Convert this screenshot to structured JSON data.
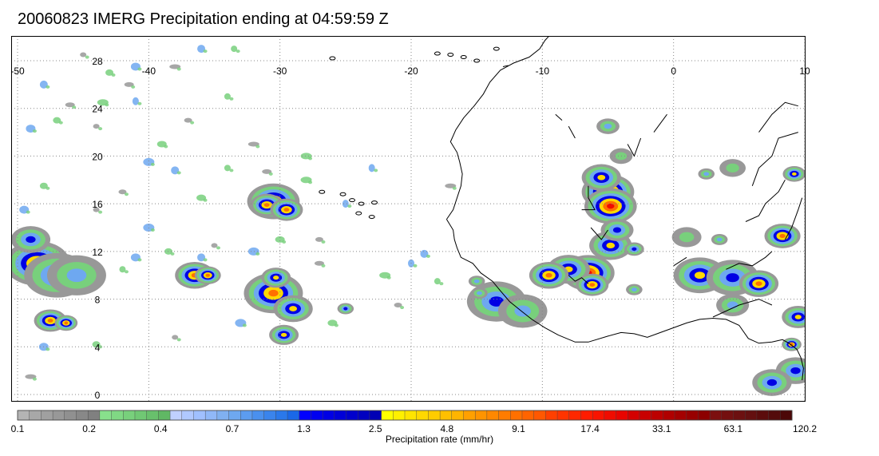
{
  "title": "20060823 IMERG Precipitation ending at 04:59:59 Z",
  "map": {
    "lon_range": [
      -50,
      10
    ],
    "lat_range": [
      -1,
      30
    ],
    "lon_labels": [
      "-50",
      "-40",
      "-30",
      "-20",
      "-10",
      "0",
      "10"
    ],
    "lat_labels": [
      "0",
      "4",
      "8",
      "12",
      "16",
      "20",
      "24",
      "28"
    ],
    "gridline_style": "dotted",
    "coast_color": "#000000"
  },
  "colorbar": {
    "colors": [
      "#b4b4b4",
      "#a8a8a8",
      "#a0a0a0",
      "#989898",
      "#909090",
      "#888888",
      "#808080",
      "#88e08c",
      "#80d884",
      "#78d07c",
      "#70c874",
      "#68c06c",
      "#60b864",
      "#c0d0ff",
      "#b0c8ff",
      "#a0c0ff",
      "#90b8f8",
      "#80b0f0",
      "#6ea8f0",
      "#5c9cf0",
      "#4a90ee",
      "#3a84ec",
      "#2a78ea",
      "#1a68e8",
      "#0000ff",
      "#0000f0",
      "#0000e4",
      "#0000d8",
      "#0000cc",
      "#0000c0",
      "#0000b4",
      "#ffff00",
      "#fff000",
      "#ffe400",
      "#ffd800",
      "#ffcc00",
      "#ffc000",
      "#ffb400",
      "#ffa000",
      "#ff9400",
      "#ff8800",
      "#ff7c00",
      "#ff7000",
      "#ff6400",
      "#ff5800",
      "#ff4000",
      "#ff3400",
      "#ff2800",
      "#ff1c00",
      "#f81400",
      "#f00c00",
      "#e80400",
      "#d40000",
      "#c80000",
      "#bc0000",
      "#b00000",
      "#a40000",
      "#980000",
      "#8c0000",
      "#7c1010",
      "#741010",
      "#6c1010",
      "#641010",
      "#5c0c0c",
      "#540c0c",
      "#4c0808"
    ],
    "tick_labels": [
      "0.1",
      "0.2",
      "0.4",
      "0.7",
      "1.3",
      "2.5",
      "4.8",
      "9.1",
      "17.4",
      "33.1",
      "63.1",
      "120.2"
    ],
    "units_label": "Precipitation rate (mm/hr)"
  },
  "rain_cells": [
    {
      "lon": -30.5,
      "lat": 16.2,
      "peak": 4,
      "size": 1.6
    },
    {
      "lon": -31.0,
      "lat": 15.9,
      "peak": 4,
      "size": 1.0
    },
    {
      "lon": -29.5,
      "lat": 15.5,
      "peak": 4,
      "size": 1.0
    },
    {
      "lon": -36.5,
      "lat": 10.0,
      "peak": 4,
      "size": 1.2
    },
    {
      "lon": -35.5,
      "lat": 10.0,
      "peak": 4,
      "size": 0.8
    },
    {
      "lon": -30.5,
      "lat": 8.5,
      "peak": 4,
      "size": 1.8
    },
    {
      "lon": -30.3,
      "lat": 9.8,
      "peak": 3,
      "size": 0.9
    },
    {
      "lon": -29.0,
      "lat": 7.2,
      "peak": 3,
      "size": 1.2
    },
    {
      "lon": -29.7,
      "lat": 5.0,
      "peak": 3,
      "size": 0.9
    },
    {
      "lon": -25.0,
      "lat": 7.2,
      "peak": 2,
      "size": 0.5
    },
    {
      "lon": -48.5,
      "lat": 11.0,
      "peak": 4,
      "size": 2.0
    },
    {
      "lon": -47.0,
      "lat": 10.0,
      "peak": 2,
      "size": 2.0
    },
    {
      "lon": -45.5,
      "lat": 10.0,
      "peak": 1,
      "size": 1.8
    },
    {
      "lon": -49.0,
      "lat": 13.0,
      "peak": 2,
      "size": 1.2
    },
    {
      "lon": -47.5,
      "lat": 6.2,
      "peak": 4,
      "size": 1.0
    },
    {
      "lon": -46.3,
      "lat": 6.0,
      "peak": 4,
      "size": 0.7
    },
    {
      "lon": -5.0,
      "lat": 17.0,
      "peak": 5,
      "size": 1.6
    },
    {
      "lon": -4.8,
      "lat": 15.8,
      "peak": 5,
      "size": 1.6
    },
    {
      "lon": -5.5,
      "lat": 18.2,
      "peak": 3,
      "size": 1.2
    },
    {
      "lon": -4.8,
      "lat": 12.5,
      "peak": 3,
      "size": 1.3
    },
    {
      "lon": -4.3,
      "lat": 13.8,
      "peak": 2,
      "size": 1.0
    },
    {
      "lon": -6.5,
      "lat": 10.2,
      "peak": 5,
      "size": 1.6
    },
    {
      "lon": -8.0,
      "lat": 10.5,
      "peak": 3,
      "size": 1.3
    },
    {
      "lon": -9.5,
      "lat": 10.0,
      "peak": 4,
      "size": 1.2
    },
    {
      "lon": -6.2,
      "lat": 9.2,
      "peak": 4,
      "size": 1.0
    },
    {
      "lon": -3.0,
      "lat": 12.2,
      "peak": 2,
      "size": 0.6
    },
    {
      "lon": 2.0,
      "lat": 10.0,
      "peak": 3,
      "size": 1.6
    },
    {
      "lon": 4.5,
      "lat": 9.8,
      "peak": 2,
      "size": 1.6
    },
    {
      "lon": 6.5,
      "lat": 9.3,
      "peak": 4,
      "size": 1.2
    },
    {
      "lon": 8.3,
      "lat": 13.3,
      "peak": 4,
      "size": 1.1
    },
    {
      "lon": 9.2,
      "lat": 18.5,
      "peak": 3,
      "size": 0.7
    },
    {
      "lon": -13.5,
      "lat": 7.8,
      "peak": 2,
      "size": 1.8
    },
    {
      "lon": -11.5,
      "lat": 7.0,
      "peak": 1,
      "size": 1.5
    },
    {
      "lon": -15.0,
      "lat": 9.5,
      "peak": 1,
      "size": 0.5
    },
    {
      "lon": -14.8,
      "lat": 8.5,
      "peak": 1,
      "size": 0.5
    },
    {
      "lon": 9.5,
      "lat": 6.5,
      "peak": 3,
      "size": 1.0
    },
    {
      "lon": 9.0,
      "lat": 4.2,
      "peak": 4,
      "size": 0.6
    },
    {
      "lon": 9.3,
      "lat": 2.0,
      "peak": 2,
      "size": 1.2
    },
    {
      "lon": 7.5,
      "lat": 1.0,
      "peak": 2,
      "size": 1.2
    },
    {
      "lon": 4.5,
      "lat": 7.5,
      "peak": 1,
      "size": 1.0
    },
    {
      "lon": -3.0,
      "lat": 8.8,
      "peak": 1,
      "size": 0.5
    },
    {
      "lon": -4.0,
      "lat": 20.0,
      "peak": 0,
      "size": 0.7
    },
    {
      "lon": -5.0,
      "lat": 22.5,
      "peak": 1,
      "size": 0.7
    },
    {
      "lon": 1.0,
      "lat": 13.2,
      "peak": 0,
      "size": 0.9
    },
    {
      "lon": 3.5,
      "lat": 13.0,
      "peak": 1,
      "size": 0.5
    },
    {
      "lon": 4.5,
      "lat": 19.0,
      "peak": 0,
      "size": 0.8
    },
    {
      "lon": 2.5,
      "lat": 18.5,
      "peak": 1,
      "size": 0.5
    }
  ],
  "scatter_cells": [
    [
      -45,
      28.5
    ],
    [
      -43,
      27
    ],
    [
      -41,
      27.5
    ],
    [
      -38,
      27.5
    ],
    [
      -34,
      25
    ],
    [
      -48,
      26
    ],
    [
      -46,
      24.3
    ],
    [
      -43.5,
      24.5
    ],
    [
      -41,
      24.6
    ],
    [
      -37,
      23
    ],
    [
      -39,
      21
    ],
    [
      -40,
      19.5
    ],
    [
      -44,
      22.5
    ],
    [
      -47,
      23
    ],
    [
      -49,
      22.3
    ],
    [
      -32,
      21
    ],
    [
      -34,
      19
    ],
    [
      -38,
      18.8
    ],
    [
      -31,
      18.7
    ],
    [
      -28,
      18
    ],
    [
      -25,
      16
    ],
    [
      -27,
      13
    ],
    [
      -30,
      13
    ],
    [
      -32,
      12
    ],
    [
      -35,
      12.5
    ],
    [
      -38.5,
      12
    ],
    [
      -41,
      11.5
    ],
    [
      -45,
      9.5
    ],
    [
      -42,
      10.5
    ],
    [
      -36,
      11.5
    ],
    [
      -27,
      11
    ],
    [
      -22,
      10
    ],
    [
      -20,
      11
    ],
    [
      -21,
      7.5
    ],
    [
      -26,
      6
    ],
    [
      -33,
      6
    ],
    [
      -38,
      4.8
    ],
    [
      -44,
      4.2
    ],
    [
      -48,
      4
    ],
    [
      -49,
      1.5
    ],
    [
      -33.5,
      29
    ],
    [
      -36,
      29
    ],
    [
      -41.5,
      26
    ],
    [
      -28,
      20
    ],
    [
      -23,
      19
    ],
    [
      -42,
      17
    ],
    [
      -36,
      16.5
    ],
    [
      -40,
      14
    ],
    [
      -44,
      15.5
    ],
    [
      -48,
      17.5
    ],
    [
      -49.5,
      15.5
    ],
    [
      -17,
      17.5
    ],
    [
      -18,
      9.5
    ],
    [
      -19,
      11.8
    ]
  ],
  "coast_lines": [
    [
      [
        -17.3,
        14.7
      ],
      [
        -16.8,
        15.5
      ],
      [
        -16.5,
        16.5
      ],
      [
        -16.2,
        17.5
      ],
      [
        -16.1,
        18.5
      ],
      [
        -16.3,
        19.5
      ],
      [
        -16.5,
        20.3
      ],
      [
        -17.0,
        21.2
      ],
      [
        -16.6,
        22.2
      ],
      [
        -16.0,
        23.2
      ],
      [
        -15.2,
        24.2
      ],
      [
        -14.5,
        25.2
      ],
      [
        -14.0,
        26.2
      ],
      [
        -13.2,
        27.2
      ],
      [
        -12.2,
        27.8
      ],
      [
        -11.0,
        28.3
      ],
      [
        -10.2,
        29.0
      ],
      [
        -9.8,
        29.7
      ],
      [
        -9.3,
        30.3
      ],
      [
        -8.8,
        30.8
      ],
      [
        -8.0,
        31.3
      ]
    ],
    [
      [
        -17.3,
        14.7
      ],
      [
        -16.8,
        13.8
      ],
      [
        -16.7,
        13.0
      ],
      [
        -16.5,
        12.3
      ],
      [
        -16.2,
        11.5
      ],
      [
        -15.3,
        11.0
      ],
      [
        -14.7,
        10.2
      ],
      [
        -13.8,
        9.5
      ],
      [
        -13.2,
        8.7
      ],
      [
        -12.5,
        7.8
      ],
      [
        -11.6,
        7.0
      ],
      [
        -10.8,
        6.3
      ],
      [
        -9.8,
        5.6
      ],
      [
        -8.8,
        5.0
      ],
      [
        -7.5,
        4.4
      ],
      [
        -6.5,
        4.4
      ],
      [
        -5.0,
        4.9
      ],
      [
        -4.0,
        5.2
      ],
      [
        -3.0,
        5.1
      ],
      [
        -2.0,
        4.8
      ],
      [
        -1.0,
        5.2
      ],
      [
        0.0,
        5.6
      ],
      [
        1.0,
        6.0
      ],
      [
        2.0,
        6.3
      ],
      [
        3.0,
        6.4
      ],
      [
        4.0,
        6.3
      ],
      [
        5.0,
        5.8
      ],
      [
        5.7,
        4.7
      ],
      [
        6.5,
        4.3
      ],
      [
        7.5,
        4.4
      ],
      [
        8.3,
        4.6
      ],
      [
        8.8,
        4.3
      ],
      [
        9.4,
        3.8
      ],
      [
        9.7,
        3.1
      ],
      [
        9.9,
        2.2
      ],
      [
        9.8,
        1.2
      ]
    ],
    [
      [
        -13.0,
        27.5
      ],
      [
        -12.6,
        27.6
      ]
    ],
    [
      [
        -8.0,
        31.3
      ],
      [
        -6.8,
        31.6
      ],
      [
        -5.8,
        32.4
      ]
    ]
  ],
  "island_cells": [
    [
      -23.8,
      16.0
    ],
    [
      -24.5,
      16.3
    ],
    [
      -22.8,
      16.1
    ],
    [
      -24.0,
      15.2
    ],
    [
      -23.0,
      14.9
    ],
    [
      -25.2,
      16.8
    ],
    [
      -26.8,
      17.0
    ],
    [
      -17.0,
      28.5
    ],
    [
      -15.0,
      28.0
    ],
    [
      -13.5,
      29.0
    ],
    [
      -16.0,
      28.3
    ],
    [
      -18.0,
      28.6
    ],
    [
      -26.0,
      28.2
    ]
  ],
  "land_lines": [
    [
      [
        -8.0,
        10.0
      ],
      [
        -7.5,
        9.5
      ],
      [
        -7.0,
        9.8
      ],
      [
        -6.5,
        9.3
      ]
    ],
    [
      [
        -7.0,
        15.5
      ],
      [
        -6.0,
        15.5
      ],
      [
        -6.5,
        16.5
      ],
      [
        -6.5,
        17.5
      ]
    ],
    [
      [
        -6.3,
        14.0
      ],
      [
        -5.5,
        13.0
      ],
      [
        -5.0,
        13.8
      ]
    ],
    [
      [
        -3.5,
        21.0
      ],
      [
        -3.0,
        20.0
      ],
      [
        -2.5,
        21.5
      ]
    ],
    [
      [
        3.0,
        6.5
      ],
      [
        4.0,
        7.0
      ],
      [
        5.0,
        7.5
      ],
      [
        6.5,
        8.0
      ],
      [
        7.5,
        7.5
      ]
    ],
    [
      [
        4.0,
        10.5
      ],
      [
        5.0,
        11.0
      ],
      [
        6.0,
        10.8
      ],
      [
        7.0,
        11.5
      ],
      [
        7.5,
        12.0
      ]
    ],
    [
      [
        5.5,
        14.5
      ],
      [
        6.5,
        15.0
      ],
      [
        7.0,
        16.0
      ],
      [
        8.0,
        17.0
      ],
      [
        8.5,
        18.0
      ]
    ],
    [
      [
        6.0,
        17.5
      ],
      [
        6.5,
        19.0
      ],
      [
        7.5,
        20.0
      ],
      [
        8.0,
        21.5
      ],
      [
        9.5,
        22.0
      ]
    ],
    [
      [
        8.5,
        13.0
      ],
      [
        9.0,
        14.0
      ],
      [
        9.5,
        15.5
      ],
      [
        9.8,
        16.5
      ]
    ],
    [
      [
        6.5,
        22.0
      ],
      [
        7.5,
        23.5
      ],
      [
        8.5,
        24.5
      ],
      [
        9.5,
        24.2
      ]
    ],
    [
      [
        -1.5,
        22.0
      ],
      [
        -0.5,
        23.5
      ]
    ],
    [
      [
        0.0,
        10.8
      ],
      [
        1.0,
        11.5
      ]
    ],
    [
      [
        -7.5,
        21.5
      ],
      [
        -8.0,
        22.5
      ]
    ],
    [
      [
        -9.0,
        23.5
      ],
      [
        -8.5,
        23.0
      ]
    ]
  ]
}
